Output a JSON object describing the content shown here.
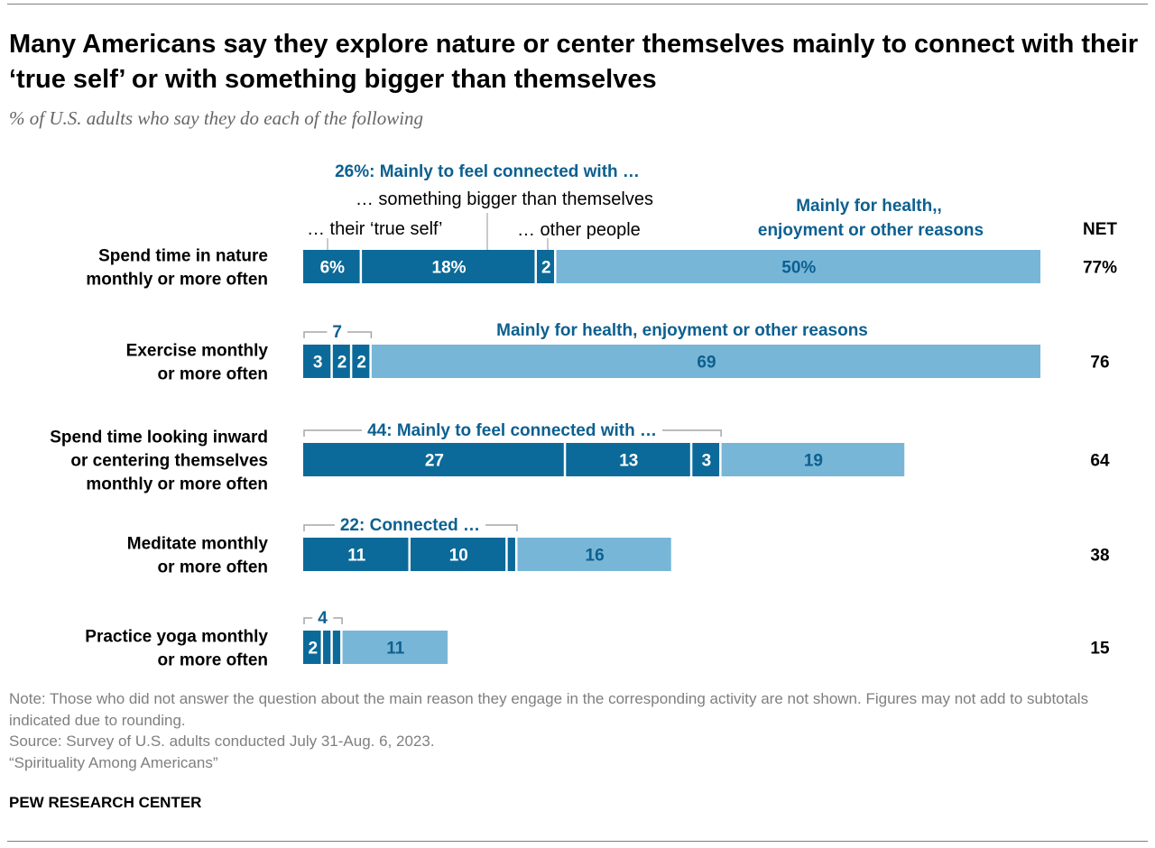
{
  "title": "Many Americans say they explore nature or center themselves mainly to connect with their ‘true self’ or with something bigger than themselves",
  "subtitle": "% of U.S. adults who say they do each of the following",
  "notes": {
    "note": "Note: Those who did not answer the question about the main reason they engage in the corresponding activity are not shown. Figures may not add to subtotals indicated due to rounding.",
    "source": "Source: Survey of U.S. adults conducted July 31-Aug. 6, 2023.",
    "report": "“Spirituality Among Americans”"
  },
  "brand": "PEW RESEARCH CENTER",
  "colors": {
    "connected": "#0b6a99",
    "other": "#78b6d7",
    "label_blue": "#0c6090",
    "bracket": "#a6a6a6"
  },
  "chart_data": {
    "type": "bar",
    "orientation": "horizontal",
    "stacked": true,
    "net_header": "NET",
    "legend_labels": {
      "total_connected": "26%: Mainly to feel connected with …",
      "something_bigger": "… something bigger than themselves",
      "true_self": "… their ‘true self’",
      "other_people": "… other people",
      "health": "Mainly for health, enjoyment or other reasons"
    },
    "series": [
      {
        "key": "true_self",
        "values": [
          6,
          3,
          27,
          11,
          2
        ]
      },
      {
        "key": "something_bigger",
        "values": [
          18,
          2,
          13,
          10,
          1
        ]
      },
      {
        "key": "other_people",
        "values": [
          2,
          2,
          3,
          1,
          1
        ]
      },
      {
        "key": "health",
        "values": [
          50,
          69,
          19,
          16,
          11
        ]
      }
    ],
    "rows": [
      {
        "label_lines": [
          "Spend time in nature",
          "monthly or more often"
        ],
        "segment_labels": [
          "6%",
          "18%",
          "2",
          "50%"
        ],
        "net": "77%",
        "bracket_label": ""
      },
      {
        "label_lines": [
          "Exercise monthly",
          "or more often"
        ],
        "segment_labels": [
          "3",
          "2",
          "2",
          "69"
        ],
        "net": "76",
        "bracket_label": "7"
      },
      {
        "label_lines": [
          "Spend time looking inward",
          "or centering themselves",
          "monthly or more often"
        ],
        "segment_labels": [
          "27",
          "13",
          "3",
          "19"
        ],
        "net": "64",
        "bracket_label": "44: Mainly to feel connected with …"
      },
      {
        "label_lines": [
          "Meditate monthly",
          "or more often"
        ],
        "segment_labels": [
          "11",
          "10",
          "",
          "16"
        ],
        "net": "38",
        "bracket_label": "22: Connected …"
      },
      {
        "label_lines": [
          "Practice yoga monthly",
          "or more often"
        ],
        "segment_labels": [
          "2",
          "",
          "",
          "11"
        ],
        "net": "15",
        "bracket_label": "4"
      }
    ]
  }
}
